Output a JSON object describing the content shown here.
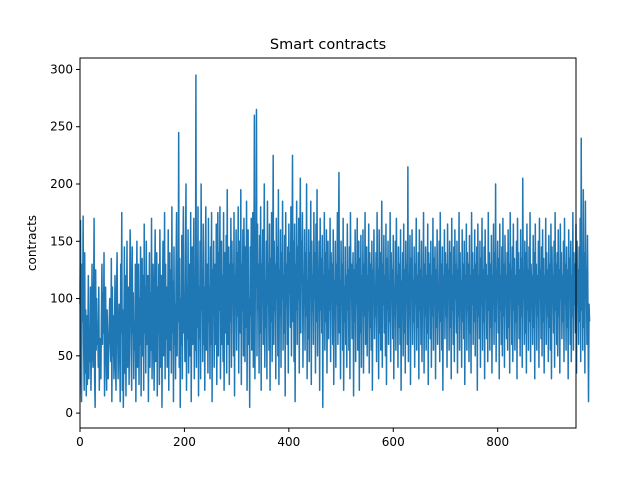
{
  "chart_data": {
    "type": "line",
    "title": "Smart contracts",
    "xlabel": "",
    "ylabel": "contracts",
    "xlim": [
      0,
      950
    ],
    "ylim": [
      -13,
      310
    ],
    "x_ticks": [
      0,
      200,
      400,
      600,
      800
    ],
    "y_ticks": [
      0,
      50,
      100,
      150,
      200,
      250,
      300
    ],
    "grid": false,
    "color": "#1f77b4",
    "series": [
      {
        "x_start": 0,
        "x_step": 1,
        "values": [
          95,
          168,
          40,
          10,
          130,
          80,
          172,
          60,
          20,
          140,
          35,
          90,
          15,
          85,
          25,
          60,
          120,
          30,
          75,
          45,
          110,
          20,
          55,
          130,
          65,
          40,
          95,
          170,
          30,
          5,
          125,
          55,
          100,
          60,
          75,
          40,
          110,
          20,
          65,
          45,
          30,
          85,
          130,
          60,
          105,
          70,
          140,
          15,
          95,
          110,
          50,
          20,
          90,
          60,
          30,
          55,
          80,
          100,
          65,
          45,
          135,
          10,
          110,
          50,
          85,
          30,
          60,
          120,
          45,
          20,
          105,
          140,
          80,
          30,
          75,
          95,
          55,
          10,
          130,
          70,
          175,
          20,
          90,
          5,
          60,
          145,
          35,
          120,
          15,
          80,
          150,
          40,
          65,
          110,
          25,
          90,
          160,
          125,
          50,
          20,
          145,
          70,
          105,
          30,
          80,
          55,
          130,
          10,
          95,
          150,
          40,
          75,
          130,
          25,
          100,
          60,
          145,
          15,
          90,
          135,
          50,
          120,
          20,
          165,
          70,
          110,
          35,
          150,
          60,
          90,
          120,
          10,
          75,
          140,
          40,
          105,
          55,
          170,
          30,
          85,
          130,
          60,
          20,
          115,
          160,
          45,
          95,
          140,
          15,
          110,
          70,
          130,
          25,
          160,
          90,
          40,
          120,
          5,
          100,
          150,
          50,
          85,
          175,
          30,
          130,
          65,
          110,
          40,
          80,
          160,
          20,
          95,
          140,
          55,
          125,
          35,
          180,
          70,
          115,
          10,
          145,
          60,
          95,
          30,
          130,
          175,
          50,
          110,
          80,
          245,
          40,
          135,
          5,
          100,
          60,
          155,
          30,
          120,
          180,
          70,
          100,
          45,
          140,
          200,
          20,
          110,
          65,
          160,
          35,
          85,
          130,
          50,
          175,
          10,
          95,
          145,
          60,
          120,
          170,
          30,
          105,
          55,
          295,
          40,
          135,
          75,
          180,
          15,
          110,
          65,
          150,
          30,
          200,
          90,
          125,
          45,
          165,
          60,
          110,
          20,
          140,
          180,
          55,
          95,
          130,
          35,
          170,
          80,
          110,
          30,
          145,
          60,
          175,
          10,
          125,
          85,
          150,
          40,
          100,
          130,
          60,
          165,
          25,
          115,
          175,
          50,
          140,
          90,
          180,
          30,
          100,
          150,
          60,
          120,
          45,
          175,
          20,
          105,
          140,
          70,
          155,
          35,
          195,
          60,
          100,
          145,
          25,
          130,
          80,
          170,
          40,
          150,
          95,
          130,
          50,
          175,
          15,
          120,
          95,
          160,
          55,
          140,
          85,
          180,
          35,
          110,
          150,
          70,
          195,
          25,
          130,
          90,
          160,
          50,
          170,
          110,
          45,
          145,
          75,
          185,
          20,
          120,
          160,
          60,
          100,
          5,
          145,
          85,
          170,
          55,
          125,
          175,
          40,
          95,
          260,
          30,
          140,
          110,
          265,
          50,
          165,
          90,
          130,
          35,
          155,
          70,
          180,
          20,
          130,
          100,
          160,
          60,
          120,
          200,
          40,
          115,
          75,
          150,
          30,
          185,
          95,
          130,
          55,
          165,
          20,
          135,
          80,
          175,
          45,
          110,
          225,
          60,
          150,
          90,
          130,
          30,
          170,
          100,
          145,
          50,
          195,
          25,
          125,
          85,
          160,
          40,
          140,
          100,
          185,
          55,
          120,
          70,
          155,
          15,
          175,
          95,
          130,
          60,
          145,
          35,
          165,
          105,
          140,
          75,
          180,
          50,
          120,
          225,
          80,
          150,
          45,
          165,
          10,
          130,
          90,
          185,
          60,
          145,
          100,
          170,
          35,
          135,
          205,
          70,
          150,
          115,
          175,
          40,
          120,
          95,
          160,
          55,
          140,
          85,
          200,
          30,
          115,
          65,
          160,
          45,
          140,
          110,
          185,
          25,
          150,
          90,
          120,
          60,
          175,
          100,
          140,
          35,
          165,
          80,
          195,
          50,
          125,
          110,
          150,
          20,
          170,
          90,
          135,
          70,
          155,
          5,
          120,
          95,
          175,
          55,
          140,
          80,
          160,
          35,
          110,
          150,
          65,
          125,
          90,
          170,
          45,
          140,
          100,
          130,
          60,
          160,
          25,
          115,
          85,
          150,
          40,
          130,
          95,
          175,
          60,
          140,
          210,
          70,
          115,
          30,
          150,
          95,
          130,
          55,
          170,
          20,
          110,
          80,
          145,
          60,
          120,
          40,
          165,
          90,
          125,
          55,
          145,
          30,
          175,
          100,
          130,
          65,
          110,
          140,
          15,
          125,
          80,
          160,
          45,
          130,
          95,
          170,
          55,
          110,
          150,
          20,
          135,
          70,
          155,
          40,
          120,
          90,
          160,
          35,
          130,
          85,
          175,
          60,
          115,
          145,
          50,
          120,
          90,
          165,
          35,
          140,
          75,
          130,
          55,
          150,
          20,
          125,
          100,
          160,
          65,
          110,
          85,
          140,
          45,
          175,
          95,
          125,
          30,
          160,
          70,
          140,
          55,
          110,
          185,
          40,
          130,
          95,
          155,
          70,
          120,
          50,
          165,
          25,
          135,
          90,
          150,
          60,
          115,
          80,
          175,
          45,
          140,
          105,
          125,
          65,
          155,
          30,
          110,
          85,
          150,
          55,
          170,
          95,
          120,
          40,
          145,
          75,
          130,
          60,
          160,
          20,
          115,
          90,
          140,
          50,
          165,
          70,
          125,
          35,
          150,
          95,
          130,
          60,
          215,
          45,
          120,
          85,
          155,
          25,
          135,
          100,
          160,
          60,
          115,
          80,
          145,
          40,
          130,
          95,
          170,
          55,
          120,
          75,
          140,
          30,
          160,
          90,
          125,
          60,
          150,
          45,
          115,
          100,
          175,
          35,
          130,
          85,
          145,
          55,
          120,
          70,
          165,
          25,
          140,
          95,
          130,
          65,
          150,
          40,
          120,
          85,
          170,
          55,
          135,
          100,
          145,
          30,
          125,
          75,
          160,
          60,
          110,
          90,
          150,
          45,
          175,
          80,
          130,
          55,
          145,
          20,
          120,
          95,
          160,
          65,
          140,
          85,
          130,
          40,
          165,
          100,
          125,
          55,
          150,
          75,
          140,
          30,
          170,
          90,
          120,
          60,
          145,
          45,
          160,
          100,
          130,
          70,
          150,
          35,
          125,
          85,
          175,
          55,
          140,
          95,
          115,
          40,
          160,
          80,
          130,
          65,
          150,
          25,
          120,
          100,
          165,
          55,
          140,
          90,
          130,
          45,
          155,
          70,
          120,
          35,
          175,
          95,
          140,
          60,
          125,
          80,
          160,
          50,
          130,
          100,
          145,
          20,
          165,
          85,
          120,
          65,
          150,
          40,
          135,
          95,
          170,
          55,
          125,
          80,
          145,
          30,
          160,
          100,
          130,
          65,
          120,
          45,
          175,
          90,
          140,
          55,
          130,
          75,
          155,
          35,
          120,
          95,
          165,
          60,
          140,
          80,
          200,
          45,
          125,
          100,
          150,
          70,
          135,
          30,
          165,
          90,
          120,
          60,
          145,
          50,
          170,
          85,
          130,
          40,
          155,
          95,
          120,
          65,
          140,
          55,
          160,
          75,
          130,
          35,
          175,
          100,
          125,
          60,
          145,
          45,
          165,
          90,
          135,
          55,
          120,
          80,
          150,
          30,
          170,
          95,
          140,
          65,
          125,
          50,
          160,
          85,
          135,
          40,
          205,
          100,
          120,
          60,
          150,
          70,
          140,
          35,
          165,
          90,
          125,
          55,
          145,
          80,
          175,
          45,
          130,
          100,
          120,
          60,
          155,
          75,
          140,
          30,
          165,
          95,
          130,
          55,
          120,
          85,
          150,
          40,
          170,
          100,
          125,
          65,
          145,
          50,
          160,
          80,
          135,
          35,
          120,
          95,
          170,
          60,
          140,
          85,
          125,
          45,
          155,
          75,
          130,
          55,
          165,
          30,
          145,
          100,
          120,
          70,
          150,
          40,
          175,
          90,
          130,
          60,
          140,
          50,
          160,
          85,
          125,
          35,
          165,
          100,
          140,
          65,
          120,
          80,
          150,
          45,
          170,
          95,
          130,
          55,
          145,
          75,
          125,
          30,
          160,
          100,
          135,
          60,
          150,
          45,
          120,
          85,
          175,
          55,
          140,
          95,
          130,
          70,
          165,
          35,
          150,
          100,
          125,
          60,
          145,
          80,
          170,
          45,
          240,
          90,
          130,
          55,
          195,
          75,
          140,
          35,
          185,
          100,
          125,
          60,
          155,
          85,
          10,
          95,
          80
        ]
      }
    ]
  }
}
